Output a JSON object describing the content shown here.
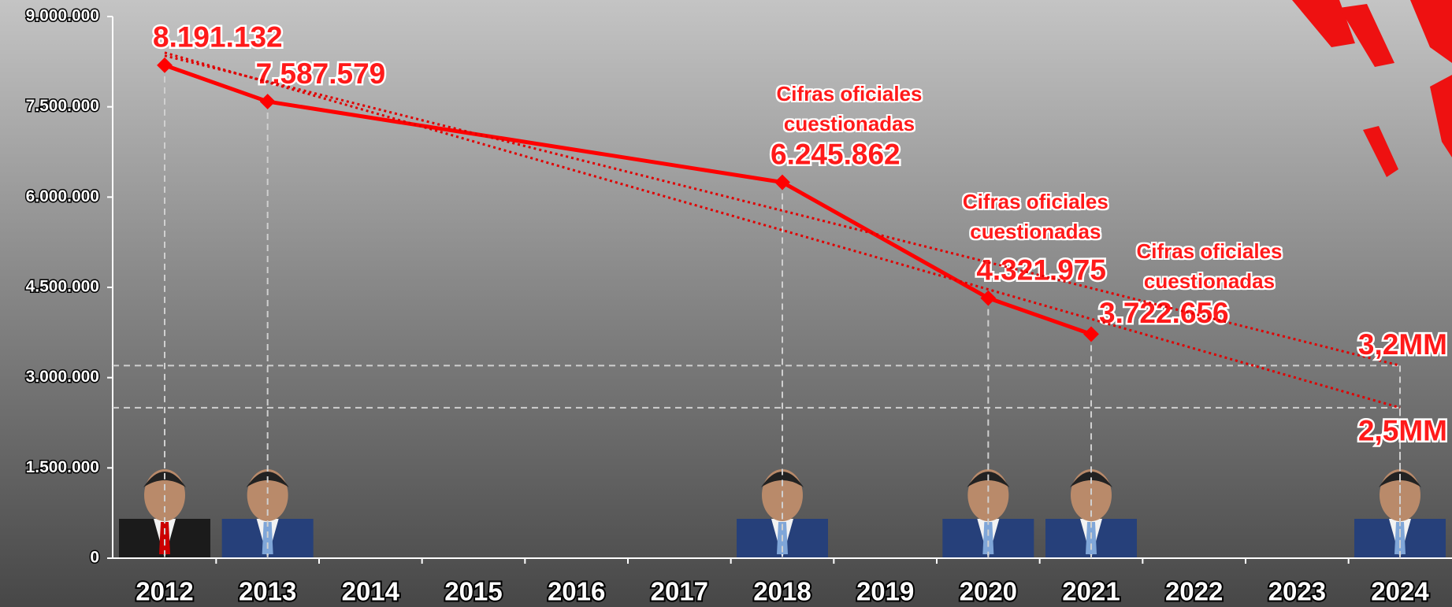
{
  "chart_data": {
    "type": "line",
    "categories": [
      "2012",
      "2013",
      "2014",
      "2015",
      "2016",
      "2017",
      "2018",
      "2019",
      "2020",
      "2021",
      "2022",
      "2023",
      "2024"
    ],
    "series": [
      {
        "color": "#ff0000",
        "style": "solid",
        "values": [
          8191132,
          7587579,
          null,
          null,
          null,
          null,
          6245862,
          null,
          4321975,
          3722656,
          null,
          null,
          null
        ],
        "value_labels": [
          "8.191.132",
          "7.587.579",
          null,
          null,
          null,
          null,
          "6.245.862",
          null,
          "4.321.975",
          "3.722.656",
          null,
          null,
          null
        ]
      },
      {
        "color": "#e00000",
        "style": "dotted",
        "values": [
          8350000,
          null,
          null,
          null,
          null,
          null,
          null,
          null,
          null,
          null,
          null,
          null,
          3200000
        ],
        "value_labels": [
          null,
          null,
          null,
          null,
          null,
          null,
          null,
          null,
          null,
          null,
          null,
          null,
          "3,2MM"
        ]
      },
      {
        "color": "#e00000",
        "style": "dotted",
        "values": [
          8400000,
          null,
          null,
          null,
          null,
          null,
          null,
          null,
          null,
          null,
          null,
          null,
          2500000
        ],
        "value_labels": [
          null,
          null,
          null,
          null,
          null,
          null,
          null,
          null,
          null,
          null,
          null,
          null,
          "2,5MM"
        ]
      }
    ],
    "annotations": [
      {
        "text": "Cifras oficiales cuestionadas",
        "category": "2018"
      },
      {
        "text": "Cifras oficiales cuestionadas",
        "category": "2020"
      },
      {
        "text": "Cifras oficiales cuestionadas",
        "category": "2021"
      }
    ],
    "ylim": [
      0,
      9000000
    ],
    "yticks": [
      {
        "value": 0,
        "label": "0"
      },
      {
        "value": 1500000,
        "label": "1.500.000"
      },
      {
        "value": 3000000,
        "label": "3.000.000"
      },
      {
        "value": 4500000,
        "label": "4.500.000"
      },
      {
        "value": 6000000,
        "label": "6.000.000"
      },
      {
        "value": 7500000,
        "label": "7.500.000"
      },
      {
        "value": 9000000,
        "label": "9.000.000"
      }
    ]
  }
}
